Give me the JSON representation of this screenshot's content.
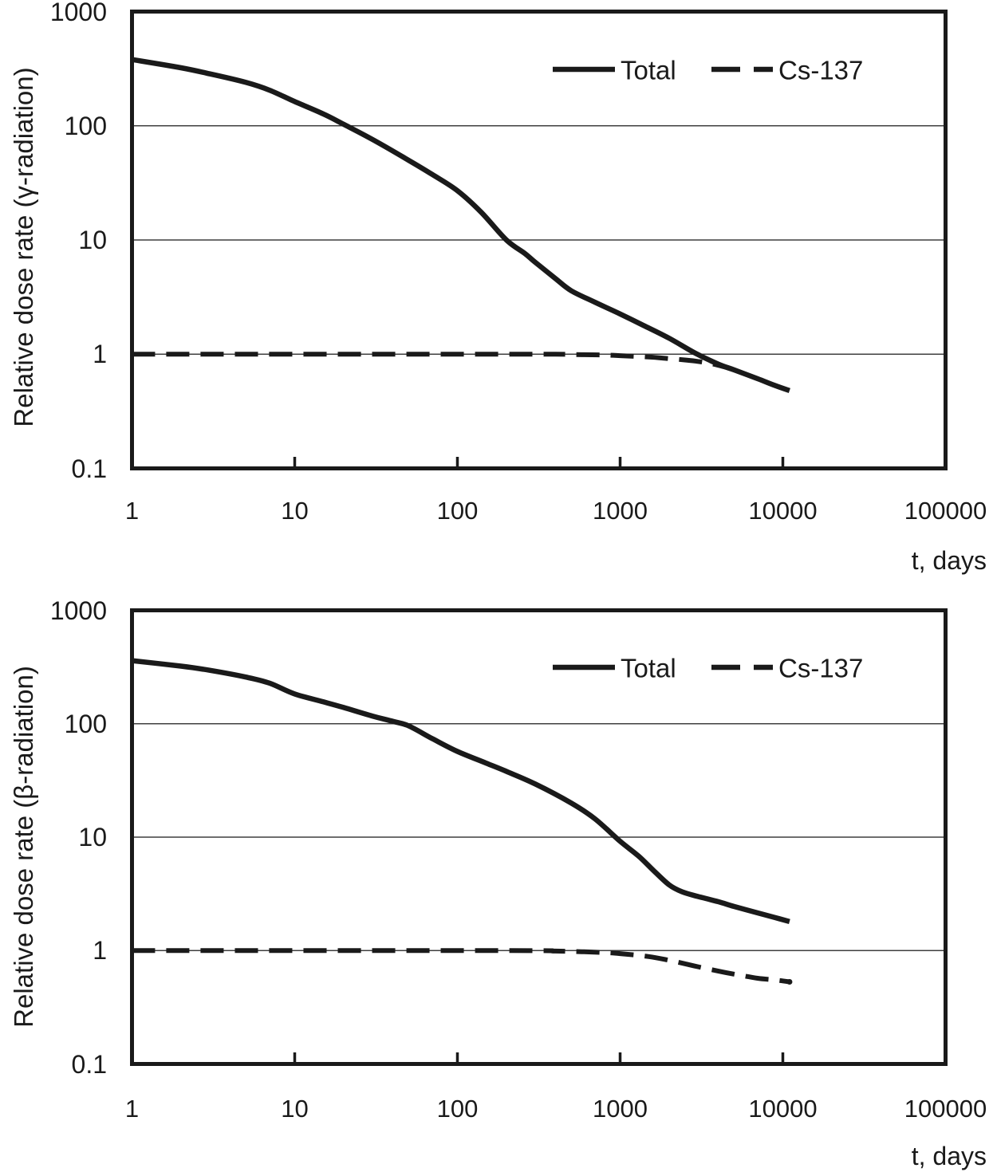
{
  "page": {
    "background": "#ffffff",
    "text_color": "#1a1a1a"
  },
  "colors": {
    "line": "#1a1a1a",
    "grid": "#3f3f3f",
    "background": "#ffffff"
  },
  "chart_data": [
    {
      "type": "line",
      "title": "",
      "xlabel": "t, days",
      "ylabel": "Relative dose rate (γ-radiation)",
      "x_scale": "log",
      "y_scale": "log",
      "xlim": [
        1,
        100000
      ],
      "ylim": [
        0.1,
        1000
      ],
      "x_tick_labels": [
        "1",
        "10",
        "100",
        "1000",
        "10000",
        "100000"
      ],
      "y_tick_labels": [
        "1000",
        "100",
        "10",
        "1",
        "0.1"
      ],
      "grid": "horizontal-major",
      "legend_position": "top-center-inside",
      "series": [
        {
          "name": "Total",
          "line_style": "solid",
          "end_dot": false,
          "points": [
            [
              1,
              380
            ],
            [
              2,
              322
            ],
            [
              3,
              285
            ],
            [
              5,
              240
            ],
            [
              7,
              205
            ],
            [
              10,
              163
            ],
            [
              15,
              127
            ],
            [
              20,
              103
            ],
            [
              30,
              76
            ],
            [
              50,
              50
            ],
            [
              70,
              37.5
            ],
            [
              100,
              27
            ],
            [
              140,
              17.5
            ],
            [
              200,
              10
            ],
            [
              260,
              7.6
            ],
            [
              300,
              6.4
            ],
            [
              400,
              4.6
            ],
            [
              500,
              3.6
            ],
            [
              700,
              2.85
            ],
            [
              1000,
              2.25
            ],
            [
              1400,
              1.78
            ],
            [
              2000,
              1.38
            ],
            [
              2900,
              1.02
            ],
            [
              4000,
              0.82
            ],
            [
              5000,
              0.73
            ],
            [
              7000,
              0.61
            ],
            [
              9000,
              0.53
            ],
            [
              11000,
              0.48
            ]
          ]
        },
        {
          "name": "Cs-137",
          "line_style": "dashed",
          "end_dot": false,
          "points": [
            [
              1,
              1.0
            ],
            [
              200,
              1.0
            ],
            [
              400,
              1.0
            ],
            [
              600,
              0.99
            ],
            [
              800,
              0.985
            ],
            [
              1000,
              0.97
            ],
            [
              1500,
              0.945
            ],
            [
              2000,
              0.915
            ],
            [
              2500,
              0.89
            ],
            [
              3000,
              0.865
            ],
            [
              3500,
              0.835
            ],
            [
              4000,
              0.8
            ],
            [
              4500,
              0.765
            ],
            [
              5000,
              0.73
            ]
          ]
        }
      ]
    },
    {
      "type": "line",
      "title": "",
      "xlabel": "t, days",
      "ylabel": "Relative dose rate (β-radiation)",
      "x_scale": "log",
      "y_scale": "log",
      "xlim": [
        1,
        100000
      ],
      "ylim": [
        0.1,
        1000
      ],
      "x_tick_labels": [
        "1",
        "10",
        "100",
        "1000",
        "10000",
        "100000"
      ],
      "y_tick_labels": [
        "1000",
        "100",
        "10",
        "1",
        "0.1"
      ],
      "grid": "horizontal-major",
      "legend_position": "top-center-inside",
      "series": [
        {
          "name": "Total",
          "line_style": "solid",
          "end_dot": false,
          "points": [
            [
              1,
              360
            ],
            [
              2,
              322
            ],
            [
              3,
              296
            ],
            [
              5,
              258
            ],
            [
              7,
              228
            ],
            [
              10,
              183
            ],
            [
              15,
              156
            ],
            [
              20,
              139
            ],
            [
              30,
              117
            ],
            [
              40,
              105
            ],
            [
              50,
              96
            ],
            [
              70,
              74
            ],
            [
              100,
              57
            ],
            [
              150,
              45
            ],
            [
              200,
              38
            ],
            [
              300,
              29.5
            ],
            [
              500,
              20
            ],
            [
              700,
              14.5
            ],
            [
              1000,
              9.2
            ],
            [
              1300,
              6.8
            ],
            [
              1600,
              5.1
            ],
            [
              2000,
              3.8
            ],
            [
              2400,
              3.3
            ],
            [
              3000,
              3.0
            ],
            [
              4000,
              2.7
            ],
            [
              5000,
              2.45
            ],
            [
              7000,
              2.15
            ],
            [
              9000,
              1.95
            ],
            [
              11000,
              1.8
            ]
          ]
        },
        {
          "name": "Cs-137",
          "line_style": "dashed",
          "end_dot": true,
          "points": [
            [
              1,
              1.0
            ],
            [
              200,
              1.0
            ],
            [
              400,
              0.99
            ],
            [
              600,
              0.975
            ],
            [
              800,
              0.96
            ],
            [
              1000,
              0.94
            ],
            [
              1500,
              0.885
            ],
            [
              2000,
              0.82
            ],
            [
              2500,
              0.765
            ],
            [
              3000,
              0.72
            ],
            [
              4000,
              0.66
            ],
            [
              5000,
              0.62
            ],
            [
              7000,
              0.57
            ],
            [
              9000,
              0.55
            ],
            [
              11000,
              0.53
            ]
          ]
        }
      ]
    }
  ]
}
